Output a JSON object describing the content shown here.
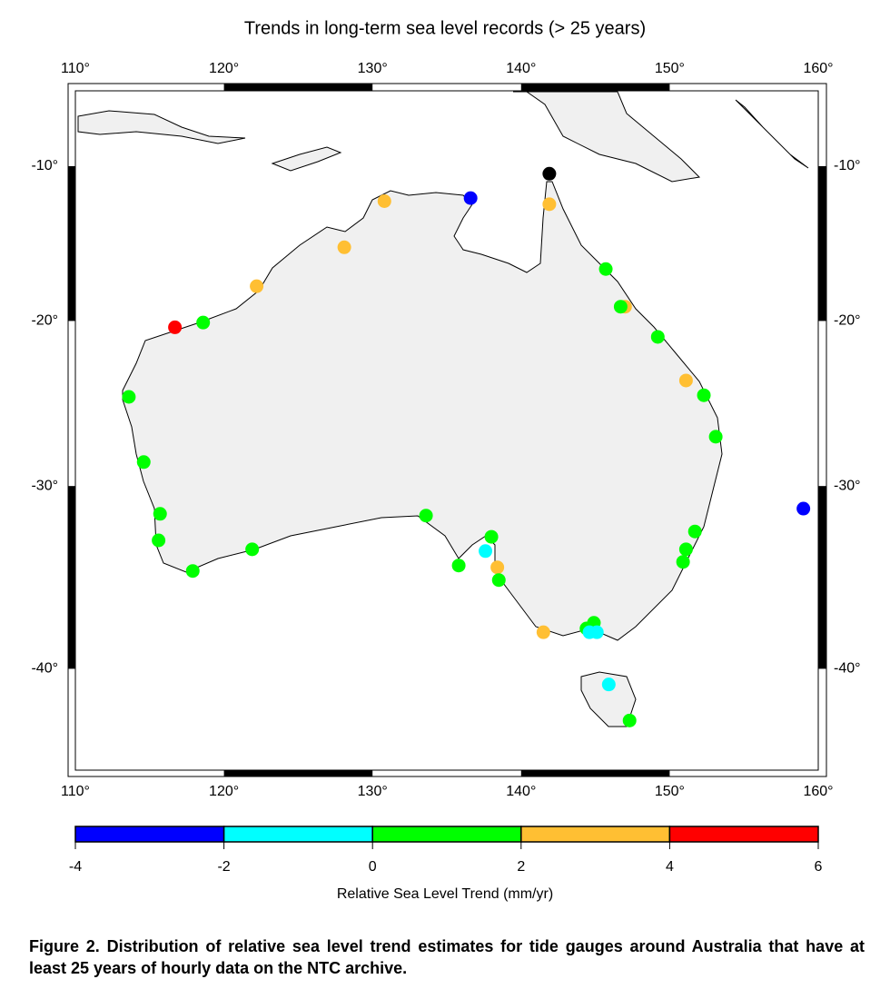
{
  "chart_data": {
    "type": "map-scatter",
    "title": "Trends in long-term sea level records (> 25 years)",
    "xlim": [
      110,
      160
    ],
    "ylim": [
      -45,
      -5
    ],
    "xticks": [
      {
        "value": 110,
        "label": "110°"
      },
      {
        "value": 120,
        "label": "120°"
      },
      {
        "value": 130,
        "label": "130°"
      },
      {
        "value": 140,
        "label": "140°"
      },
      {
        "value": 150,
        "label": "150°"
      },
      {
        "value": 160,
        "label": "160°"
      }
    ],
    "yticks": [
      {
        "value": -10,
        "label": "-10°"
      },
      {
        "value": -20,
        "label": "-20°"
      },
      {
        "value": -30,
        "label": "-30°"
      },
      {
        "value": -40,
        "label": "-40°"
      }
    ],
    "points": {
      "x": [
        141.9,
        136.6,
        130.8,
        141.9,
        128.1,
        145.7,
        122.2,
        147.0,
        146.7,
        116.7,
        118.6,
        149.2,
        151.1,
        113.6,
        152.3,
        153.1,
        114.6,
        159.0,
        115.7,
        133.6,
        151.7,
        138.0,
        115.6,
        137.6,
        151.1,
        121.9,
        150.9,
        138.4,
        135.8,
        117.9,
        138.5,
        144.9,
        144.4,
        141.5,
        144.6,
        145.1,
        145.9,
        147.3
      ],
      "y": [
        -10.5,
        -12.1,
        -12.3,
        -12.5,
        -15.3,
        -16.7,
        -17.8,
        -19.1,
        -19.1,
        -20.4,
        -20.1,
        -21.0,
        -23.7,
        -24.7,
        -24.6,
        -27.1,
        -28.6,
        -31.3,
        -31.6,
        -31.7,
        -32.6,
        -32.9,
        -33.1,
        -33.7,
        -33.6,
        -33.6,
        -34.3,
        -34.6,
        -34.5,
        -34.8,
        -35.3,
        -37.6,
        -37.9,
        -38.1,
        -38.1,
        -38.1,
        -40.8,
        -42.6
      ],
      "values": [
        null,
        -3,
        3,
        3,
        3,
        1,
        3,
        3,
        1,
        5,
        1,
        1,
        3,
        1,
        1,
        1,
        1,
        -3,
        1,
        1,
        1,
        1,
        1,
        -1,
        1,
        1,
        1,
        3,
        1,
        1,
        1,
        1,
        1,
        3,
        -1,
        -1,
        -1,
        1
      ],
      "missing_color": "#000000"
    },
    "colorbar": {
      "label": "Relative Sea Level Trend (mm/yr)",
      "bounds": [
        -4,
        -2,
        0,
        2,
        4,
        6
      ],
      "colors": [
        "#0000ff",
        "#00ffff",
        "#00ff00",
        "#ffbf33",
        "#ff0000"
      ]
    },
    "caption": "Figure 2. Distribution of relative sea level trend estimates for tide gauges around Australia that have at least 25 years of hourly data on the NTC archive."
  }
}
